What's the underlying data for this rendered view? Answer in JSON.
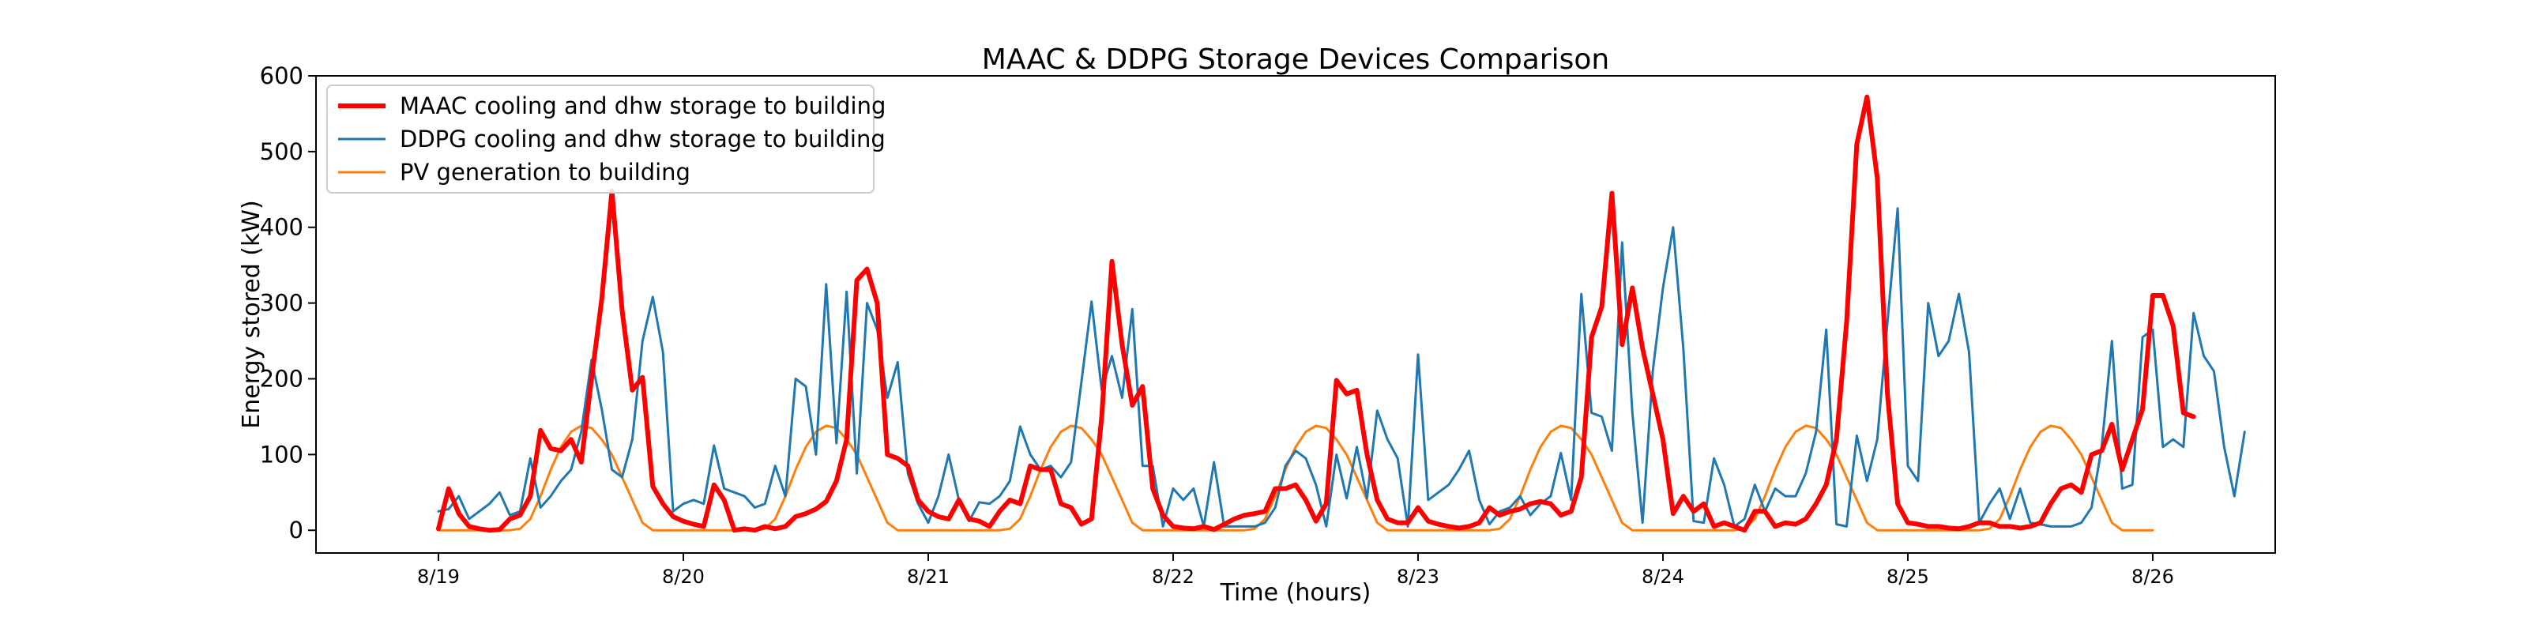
{
  "chart_data": {
    "type": "line",
    "title": "MAAC & DDPG Storage Devices Comparison",
    "xlabel": "Time (hours)",
    "ylabel": "Energy stored (kW)",
    "xlim": [
      -12,
      180
    ],
    "ylim": [
      -30,
      600
    ],
    "yticks": [
      0,
      100,
      200,
      300,
      400,
      500,
      600
    ],
    "xticks": [
      {
        "x": 0,
        "label": "8/19"
      },
      {
        "x": 24,
        "label": "8/20"
      },
      {
        "x": 48,
        "label": "8/21"
      },
      {
        "x": 72,
        "label": "8/22"
      },
      {
        "x": 96,
        "label": "8/23"
      },
      {
        "x": 120,
        "label": "8/24"
      },
      {
        "x": 144,
        "label": "8/25"
      },
      {
        "x": 168,
        "label": "8/26"
      }
    ],
    "grid": false,
    "legend_position": "top-left",
    "series": [
      {
        "name": "MAAC cooling and dhw storage to building",
        "color": "#ff0000",
        "width": 6,
        "values": [
          2,
          55,
          22,
          5,
          2,
          0,
          1,
          15,
          20,
          45,
          132,
          108,
          105,
          120,
          90,
          200,
          305,
          448,
          290,
          185,
          202,
          58,
          35,
          18,
          12,
          8,
          5,
          60,
          40,
          0,
          2,
          0,
          5,
          2,
          5,
          18,
          22,
          28,
          38,
          65,
          120,
          330,
          345,
          300,
          100,
          95,
          85,
          40,
          25,
          18,
          15,
          40,
          15,
          12,
          5,
          25,
          40,
          35,
          85,
          80,
          80,
          35,
          30,
          8,
          15,
          150,
          355,
          245,
          165,
          190,
          55,
          20,
          5,
          3,
          2,
          5,
          1,
          8,
          15,
          20,
          22,
          25,
          55,
          55,
          60,
          40,
          12,
          35,
          198,
          180,
          185,
          100,
          40,
          15,
          10,
          10,
          30,
          12,
          8,
          5,
          3,
          5,
          10,
          30,
          20,
          25,
          28,
          35,
          38,
          35,
          20,
          25,
          70,
          255,
          295,
          445,
          245,
          320,
          240,
          180,
          120,
          22,
          45,
          25,
          35,
          5,
          10,
          5,
          0,
          25,
          25,
          5,
          10,
          8,
          15,
          35,
          60,
          120,
          275,
          510,
          572,
          465,
          180,
          35,
          10,
          8,
          5,
          5,
          3,
          2,
          5,
          10,
          10,
          5,
          5,
          3,
          5,
          10,
          35,
          55,
          60,
          50,
          100,
          105,
          140,
          80,
          120,
          160,
          310,
          310,
          270,
          155,
          150
        ]
      },
      {
        "name": "DDPG cooling and dhw storage to building",
        "color": "#1f77b4",
        "width": 3,
        "values": [
          25,
          28,
          45,
          15,
          25,
          35,
          50,
          20,
          25,
          95,
          30,
          45,
          65,
          80,
          130,
          225,
          160,
          80,
          70,
          120,
          250,
          308,
          235,
          25,
          35,
          40,
          35,
          112,
          55,
          50,
          45,
          30,
          35,
          85,
          45,
          200,
          190,
          100,
          325,
          115,
          315,
          75,
          300,
          265,
          175,
          222,
          75,
          35,
          10,
          45,
          100,
          40,
          12,
          37,
          35,
          45,
          65,
          137,
          100,
          80,
          85,
          70,
          90,
          195,
          302,
          185,
          230,
          175,
          292,
          85,
          85,
          5,
          55,
          40,
          55,
          5,
          90,
          5,
          5,
          5,
          5,
          10,
          30,
          85,
          105,
          95,
          60,
          5,
          100,
          42,
          110,
          42,
          158,
          120,
          95,
          5,
          232,
          40,
          50,
          60,
          80,
          105,
          40,
          8,
          25,
          30,
          45,
          20,
          35,
          45,
          102,
          40,
          312,
          155,
          150,
          105,
          380,
          155,
          10,
          210,
          320,
          400,
          240,
          12,
          10,
          95,
          60,
          5,
          15,
          60,
          25,
          55,
          45,
          45,
          75,
          130,
          265,
          8,
          5,
          125,
          65,
          120,
          275,
          425,
          85,
          65,
          300,
          230,
          250,
          312,
          235,
          10,
          35,
          55,
          15,
          55,
          10,
          8,
          5,
          5,
          5,
          10,
          30,
          110,
          250,
          55,
          60,
          255,
          265,
          110,
          120,
          110,
          287,
          230,
          210,
          110,
          45,
          130
        ]
      },
      {
        "name": "PV generation to building",
        "color": "#ff7f0e",
        "width": 3,
        "values": [
          0,
          0,
          0,
          0,
          0,
          0,
          0,
          0,
          2,
          15,
          45,
          80,
          110,
          130,
          138,
          135,
          120,
          100,
          70,
          40,
          10,
          0,
          0,
          0,
          0,
          0,
          0,
          0,
          0,
          0,
          0,
          0,
          2,
          15,
          45,
          80,
          110,
          130,
          138,
          135,
          120,
          100,
          70,
          40,
          10,
          0,
          0,
          0,
          0,
          0,
          0,
          0,
          0,
          0,
          0,
          0,
          2,
          15,
          45,
          80,
          110,
          130,
          138,
          135,
          120,
          100,
          70,
          40,
          10,
          0,
          0,
          0,
          0,
          0,
          0,
          0,
          0,
          0,
          0,
          0,
          2,
          15,
          45,
          80,
          110,
          130,
          138,
          135,
          120,
          100,
          70,
          40,
          10,
          0,
          0,
          0,
          0,
          0,
          0,
          0,
          0,
          0,
          0,
          0,
          2,
          15,
          45,
          80,
          110,
          130,
          138,
          135,
          120,
          100,
          70,
          40,
          10,
          0,
          0,
          0,
          0,
          0,
          0,
          0,
          0,
          0,
          0,
          0,
          2,
          15,
          45,
          80,
          110,
          130,
          138,
          135,
          120,
          100,
          70,
          40,
          10,
          0,
          0,
          0,
          0,
          0,
          0,
          0,
          0,
          0,
          0,
          0,
          2,
          15,
          45,
          80,
          110,
          130,
          138,
          135,
          120,
          100,
          70,
          40,
          10,
          0,
          0,
          0,
          0
        ]
      }
    ]
  }
}
